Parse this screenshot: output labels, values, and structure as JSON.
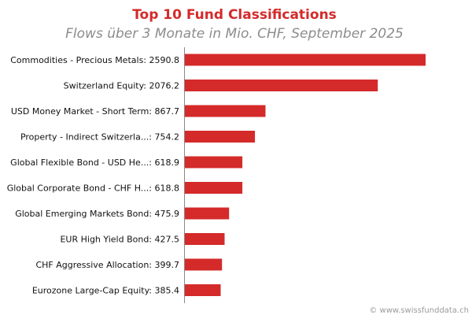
{
  "chart_data": {
    "type": "bar",
    "orientation": "horizontal",
    "title": "Top 10 Fund Classifications",
    "subtitle": "Flows über 3 Monate in Mio. CHF, September 2025",
    "categories": [
      "Commodities - Precious Metals",
      "Switzerland Equity",
      "USD Money Market - Short Term",
      "Property - Indirect Switzerla...",
      "Global Flexible Bond - USD He...",
      "Global Corporate Bond - CHF H...",
      "Global Emerging Markets Bond",
      "EUR High Yield Bond",
      "CHF Aggressive Allocation",
      "Eurozone Large-Cap Equity"
    ],
    "values": [
      2590.8,
      2076.2,
      867.7,
      754.2,
      618.9,
      618.8,
      475.9,
      427.5,
      399.7,
      385.4
    ],
    "labels": [
      "Commodities - Precious Metals: 2590.8",
      "Switzerland Equity: 2076.2",
      "USD Money Market - Short Term: 867.7",
      "Property - Indirect Switzerla...: 754.2",
      "Global Flexible Bond - USD He...: 618.9",
      "Global Corporate Bond - CHF H...: 618.8",
      "Global Emerging Markets Bond: 475.9",
      "EUR High Yield Bond: 427.5",
      "CHF Aggressive Allocation: 399.7",
      "Eurozone Large-Cap Equity: 385.4"
    ],
    "bar_color": "#d42a2a",
    "grid": false,
    "legend": "none"
  },
  "footer": "© www.swissfunddata.ch"
}
